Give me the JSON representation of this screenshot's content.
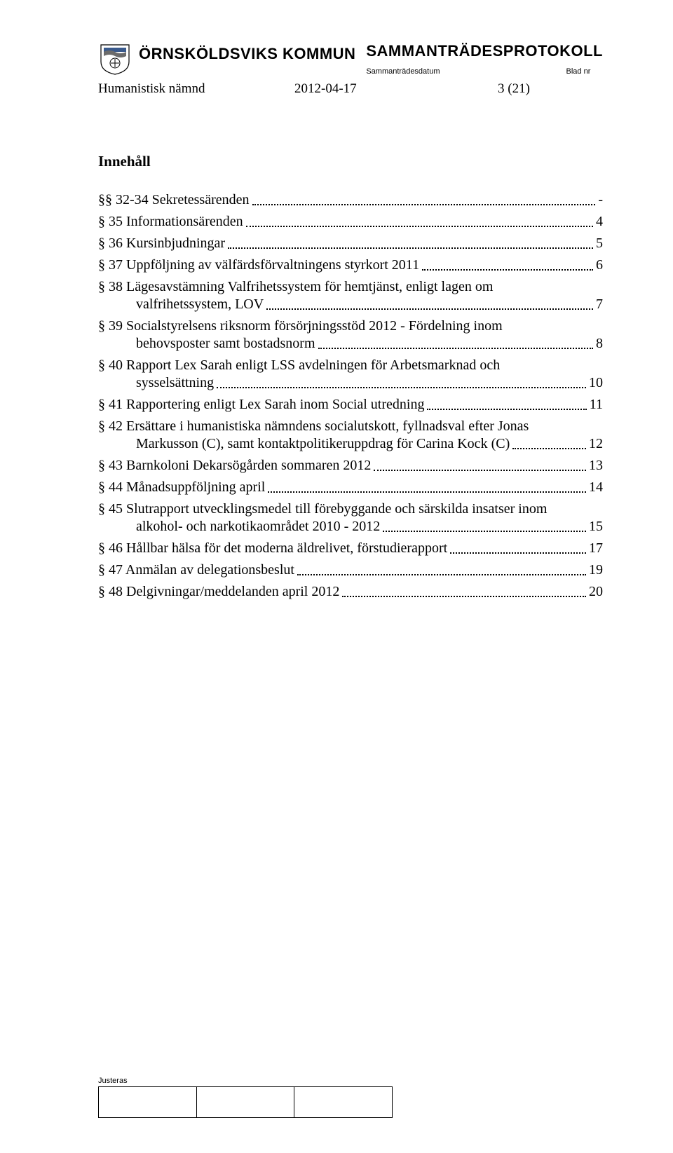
{
  "header": {
    "kommun": "ÖRNSKÖLDSVIKS KOMMUN",
    "protokoll": "SAMMANTRÄDESPROTOKOLL",
    "meta_left": "Sammanträdesdatum",
    "meta_right": "Blad nr",
    "namnd": "Humanistisk nämnd",
    "date": "2012-04-17",
    "page": "3 (21)"
  },
  "content_heading": "Innehåll",
  "toc": [
    {
      "lines": [
        "§§ 32-34 Sekretessärenden"
      ],
      "page": "-"
    },
    {
      "lines": [
        "§ 35 Informationsärenden"
      ],
      "page": "4"
    },
    {
      "lines": [
        "§ 36 Kursinbjudningar"
      ],
      "page": "5"
    },
    {
      "lines": [
        "§ 37 Uppföljning av välfärdsförvaltningens styrkort 2011"
      ],
      "page": "6"
    },
    {
      "lines": [
        "§ 38 Lägesavstämning Valfrihetssystem för hemtjänst, enligt lagen om",
        "valfrihetssystem, LOV"
      ],
      "page": "7"
    },
    {
      "lines": [
        "§ 39 Socialstyrelsens riksnorm försörjningsstöd 2012 - Fördelning inom",
        "behovsposter samt bostadsnorm"
      ],
      "page": "8"
    },
    {
      "lines": [
        "§ 40 Rapport Lex Sarah enligt LSS avdelningen för Arbetsmarknad och",
        "sysselsättning"
      ],
      "page": "10"
    },
    {
      "lines": [
        "§ 41 Rapportering enligt Lex Sarah inom Social utredning"
      ],
      "page": "11"
    },
    {
      "lines": [
        "§ 42 Ersättare i humanistiska nämndens socialutskott, fyllnadsval efter Jonas",
        "Markusson (C), samt kontaktpolitikeruppdrag för Carina Kock (C)"
      ],
      "page": "12"
    },
    {
      "lines": [
        "§ 43 Barnkoloni Dekarsögården sommaren 2012"
      ],
      "page": "13"
    },
    {
      "lines": [
        "§ 44 Månadsuppföljning april"
      ],
      "page": "14"
    },
    {
      "lines": [
        "§ 45 Slutrapport utvecklingsmedel till förebyggande och särskilda insatser inom",
        "alkohol- och narkotikaområdet 2010 - 2012"
      ],
      "page": "15"
    },
    {
      "lines": [
        "§ 46 Hållbar hälsa för det moderna äldrelivet, förstudierapport"
      ],
      "page": "17"
    },
    {
      "lines": [
        "§ 47 Anmälan av delegationsbeslut"
      ],
      "page": "19"
    },
    {
      "lines": [
        "§ 48 Delgivningar/meddelanden april 2012"
      ],
      "page": "20"
    }
  ],
  "footer": {
    "label": "Justeras"
  },
  "colors": {
    "text": "#000000",
    "background": "#ffffff",
    "crest_blue": "#3a5a8c",
    "crest_gray": "#6b6b6b"
  }
}
